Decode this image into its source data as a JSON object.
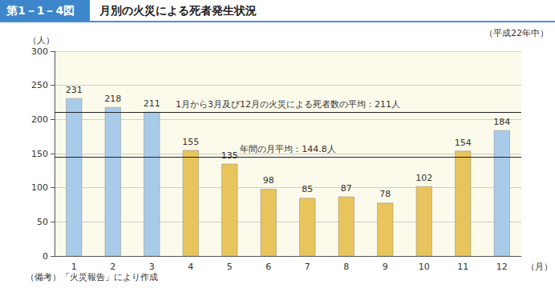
{
  "chart_data": {
    "type": "bar",
    "figure_number": "第1－1－4図",
    "title": "月別の火災による死者発生状況",
    "subtitle": "（平成22年中）",
    "y_label": "（人）",
    "x_label": "（月）",
    "note": "（備考）「火災報告」により作成",
    "categories": [
      "1",
      "2",
      "3",
      "4",
      "5",
      "6",
      "7",
      "8",
      "9",
      "10",
      "11",
      "12"
    ],
    "values": [
      231,
      218,
      211,
      155,
      135,
      98,
      85,
      87,
      78,
      102,
      154,
      184
    ],
    "colors": [
      "#a9cbea",
      "#a9cbea",
      "#a9cbea",
      "#e8c55c",
      "#e8c55c",
      "#e8c55c",
      "#e8c55c",
      "#e8c55c",
      "#e8c55c",
      "#e8c55c",
      "#e8c55c",
      "#a9cbea"
    ],
    "reference_lines": [
      {
        "value": 211,
        "label": "1月から3月及び12月の火災による死者数の平均：211人"
      },
      {
        "value": 144.8,
        "label": "年間の月平均：144.8人"
      }
    ],
    "ylim": [
      0,
      300
    ],
    "yticks": [
      0,
      50,
      100,
      150,
      200,
      250,
      300
    ],
    "grid": true,
    "data_labels": true
  }
}
